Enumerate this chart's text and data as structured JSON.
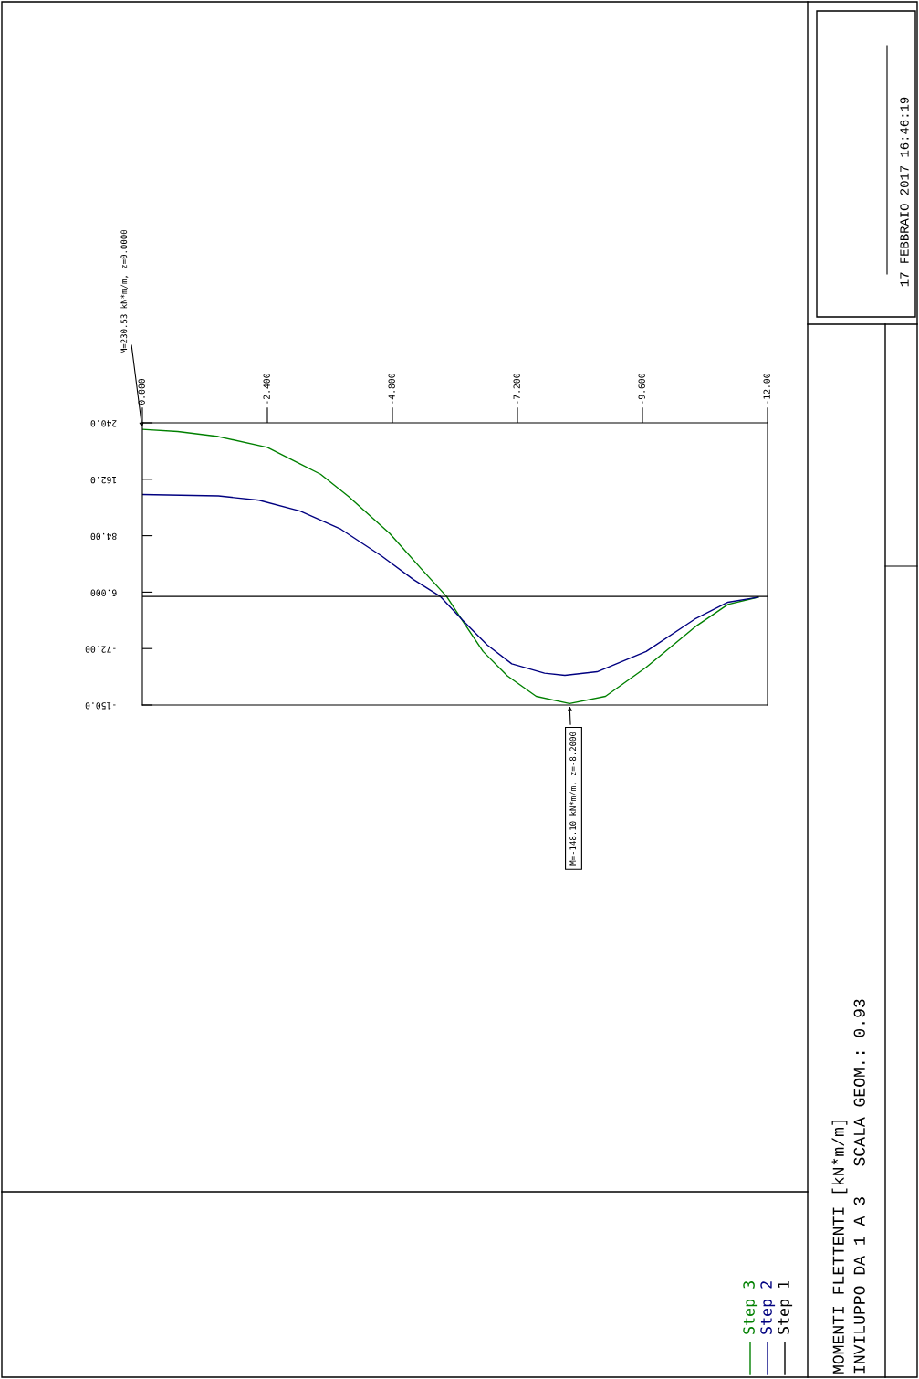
{
  "chart_data": {
    "type": "line",
    "title": "MOMENTI FLETTENTI [kN*m/m]",
    "subtitle": "INVILUPPO DA 1 A 3   SCALA GEOM.: 0.93",
    "xlim": [
      0,
      -12
    ],
    "ylim": [
      -150,
      240
    ],
    "xticks": [
      {
        "value": 0,
        "label": "0.000"
      },
      {
        "value": -2.4,
        "label": "-2.400"
      },
      {
        "value": -4.8,
        "label": "-4.800"
      },
      {
        "value": -7.2,
        "label": "-7.200"
      },
      {
        "value": -9.6,
        "label": "-9.600"
      },
      {
        "value": -12,
        "label": "-12.00"
      }
    ],
    "yticks": [
      {
        "value": 240,
        "label": "240.0"
      },
      {
        "value": 162,
        "label": "162.0"
      },
      {
        "value": 84,
        "label": "84.00"
      },
      {
        "value": 6,
        "label": "6.000"
      },
      {
        "value": -72,
        "label": "-72.00"
      },
      {
        "value": -150,
        "label": "-150.0"
      }
    ],
    "grid": false,
    "legend": "bottom",
    "series": [
      {
        "name": "Step 3",
        "color": "#008000",
        "x": [
          0,
          -0.68,
          -1.46,
          -2.4,
          -3.42,
          -3.96,
          -4.75,
          -5.37,
          -5.84,
          -6.15,
          -6.54,
          -7.01,
          -7.56,
          -8.2,
          -8.89,
          -9.67,
          -10.61,
          -11.24,
          -11.82
        ],
        "values": [
          231,
          228,
          221,
          206,
          169,
          138,
          87,
          37,
          0,
          -34,
          -76,
          -110,
          -138,
          -148,
          -138,
          -98,
          -42,
          -11,
          -1
        ]
      },
      {
        "name": "Step 2",
        "color": "#000080",
        "x": [
          0,
          -1.46,
          -2.24,
          -3.03,
          -3.81,
          -4.59,
          -5.21,
          -5.72,
          -6.15,
          -6.62,
          -7.09,
          -7.72,
          -8.11,
          -8.73,
          -9.67,
          -10.61,
          -11.24,
          -11.82
        ],
        "values": [
          141,
          139,
          133,
          118,
          93,
          56,
          23,
          0,
          -33,
          -67,
          -93,
          -106,
          -109,
          -104,
          -76,
          -31,
          -8,
          -1
        ]
      },
      {
        "name": "Step 1",
        "color": "#000000",
        "x": [
          0,
          -12
        ],
        "values": [
          0,
          0
        ]
      }
    ],
    "annotations": [
      {
        "text": "M=230.53 kN*m/m, z=0.0000",
        "x": 0,
        "y": 230.53
      },
      {
        "text": "M=-148.10 kN*m/m, z=-8.2000",
        "x": -8.2,
        "y": -148.1
      },
      "17 FEBBRAIO 2017 16:46:19"
    ]
  }
}
